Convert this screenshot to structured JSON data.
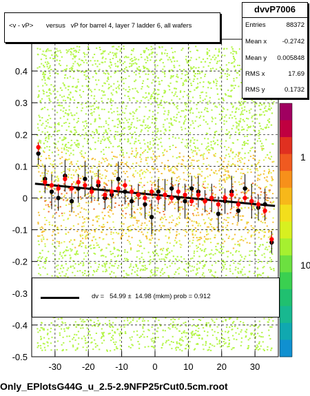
{
  "chart_data": {
    "type": "scatter",
    "title": "<v - vP>       versus   vP for barrel 4, layer 7 ladder 6, all wafers",
    "xlim": [
      -37,
      37
    ],
    "ylim": [
      -0.5,
      0.5
    ],
    "x_ticks": [
      "-30",
      "-20",
      "-10",
      "0",
      "10",
      "20",
      "30"
    ],
    "x_tick_values": [
      -30,
      -20,
      -10,
      0,
      10,
      20,
      30
    ],
    "y_ticks": [
      "-0.5",
      "-0.4",
      "-0.3",
      "-0.2",
      "-0.1",
      "0",
      "0.1",
      "0.2",
      "0.3",
      "0.4",
      "0.5"
    ],
    "y_tick_values": [
      -0.5,
      -0.4,
      -0.3,
      -0.2,
      -0.1,
      0,
      0.1,
      0.2,
      0.3,
      0.4,
      0.5
    ],
    "colorbar_labels": [
      "1",
      "10"
    ],
    "grid": true,
    "series": [
      {
        "kind": "black-profile",
        "color": "#000000",
        "x": [
          -35,
          -33,
          -31,
          -29,
          -27,
          -25,
          -23,
          -21,
          -19,
          -17,
          -15,
          -13,
          -11,
          -9,
          -7,
          -5,
          -3,
          -1,
          1,
          3,
          5,
          7,
          9,
          11,
          13,
          15,
          17,
          19,
          21,
          23,
          25,
          27,
          29,
          31,
          33,
          35
        ],
        "y": [
          0.14,
          0.06,
          0.02,
          0.0,
          0.07,
          -0.01,
          0.03,
          0.06,
          0.03,
          0.04,
          0.0,
          0.01,
          0.06,
          0.02,
          -0.01,
          0.01,
          -0.02,
          -0.06,
          0.02,
          0.01,
          0.03,
          0.0,
          -0.01,
          0.03,
          0.02,
          -0.01,
          0.0,
          -0.05,
          -0.01,
          0.02,
          -0.04,
          0.03,
          -0.01,
          -0.03,
          -0.02,
          -0.14
        ]
      },
      {
        "kind": "red-profile",
        "color": "#ff0000",
        "x": [
          -35,
          -33,
          -31,
          -29,
          -27,
          -25,
          -23,
          -21,
          -19,
          -17,
          -15,
          -13,
          -11,
          -9,
          -7,
          -5,
          -3,
          -1,
          1,
          3,
          5,
          7,
          9,
          11,
          13,
          15,
          17,
          19,
          21,
          23,
          25,
          27,
          29,
          31,
          33,
          35
        ],
        "y": [
          0.16,
          0.05,
          0.04,
          0.03,
          0.06,
          0.03,
          0.05,
          0.04,
          0.02,
          0.05,
          0.01,
          0.02,
          0.03,
          0.04,
          0.02,
          0.01,
          0.0,
          0.02,
          0.0,
          0.01,
          0.0,
          0.02,
          0.01,
          -0.01,
          0.01,
          -0.01,
          0.0,
          -0.02,
          0.0,
          0.01,
          -0.02,
          0.0,
          -0.01,
          -0.02,
          -0.04,
          -0.13
        ]
      }
    ],
    "fit_line": {
      "x": [
        -36,
        36
      ],
      "y": [
        0.045,
        -0.025
      ],
      "color": "#000000"
    }
  },
  "stats": {
    "title": "dvvP7006",
    "rows": [
      {
        "key": "Entries",
        "value": "88372"
      },
      {
        "key": "Mean x",
        "value": "-0.2742"
      },
      {
        "key": "Mean y",
        "value": "0.005848"
      },
      {
        "key": "RMS x",
        "value": "17.69"
      },
      {
        "key": "RMS y",
        "value": "0.1732"
      }
    ]
  },
  "legend": {
    "text": "dv =   54.99 ±  14.98 (mkm) prob = 0.912"
  },
  "footer": "Only_EPlotsG44G_u_2.5-2.9NFP25rCut0.5cm.root"
}
